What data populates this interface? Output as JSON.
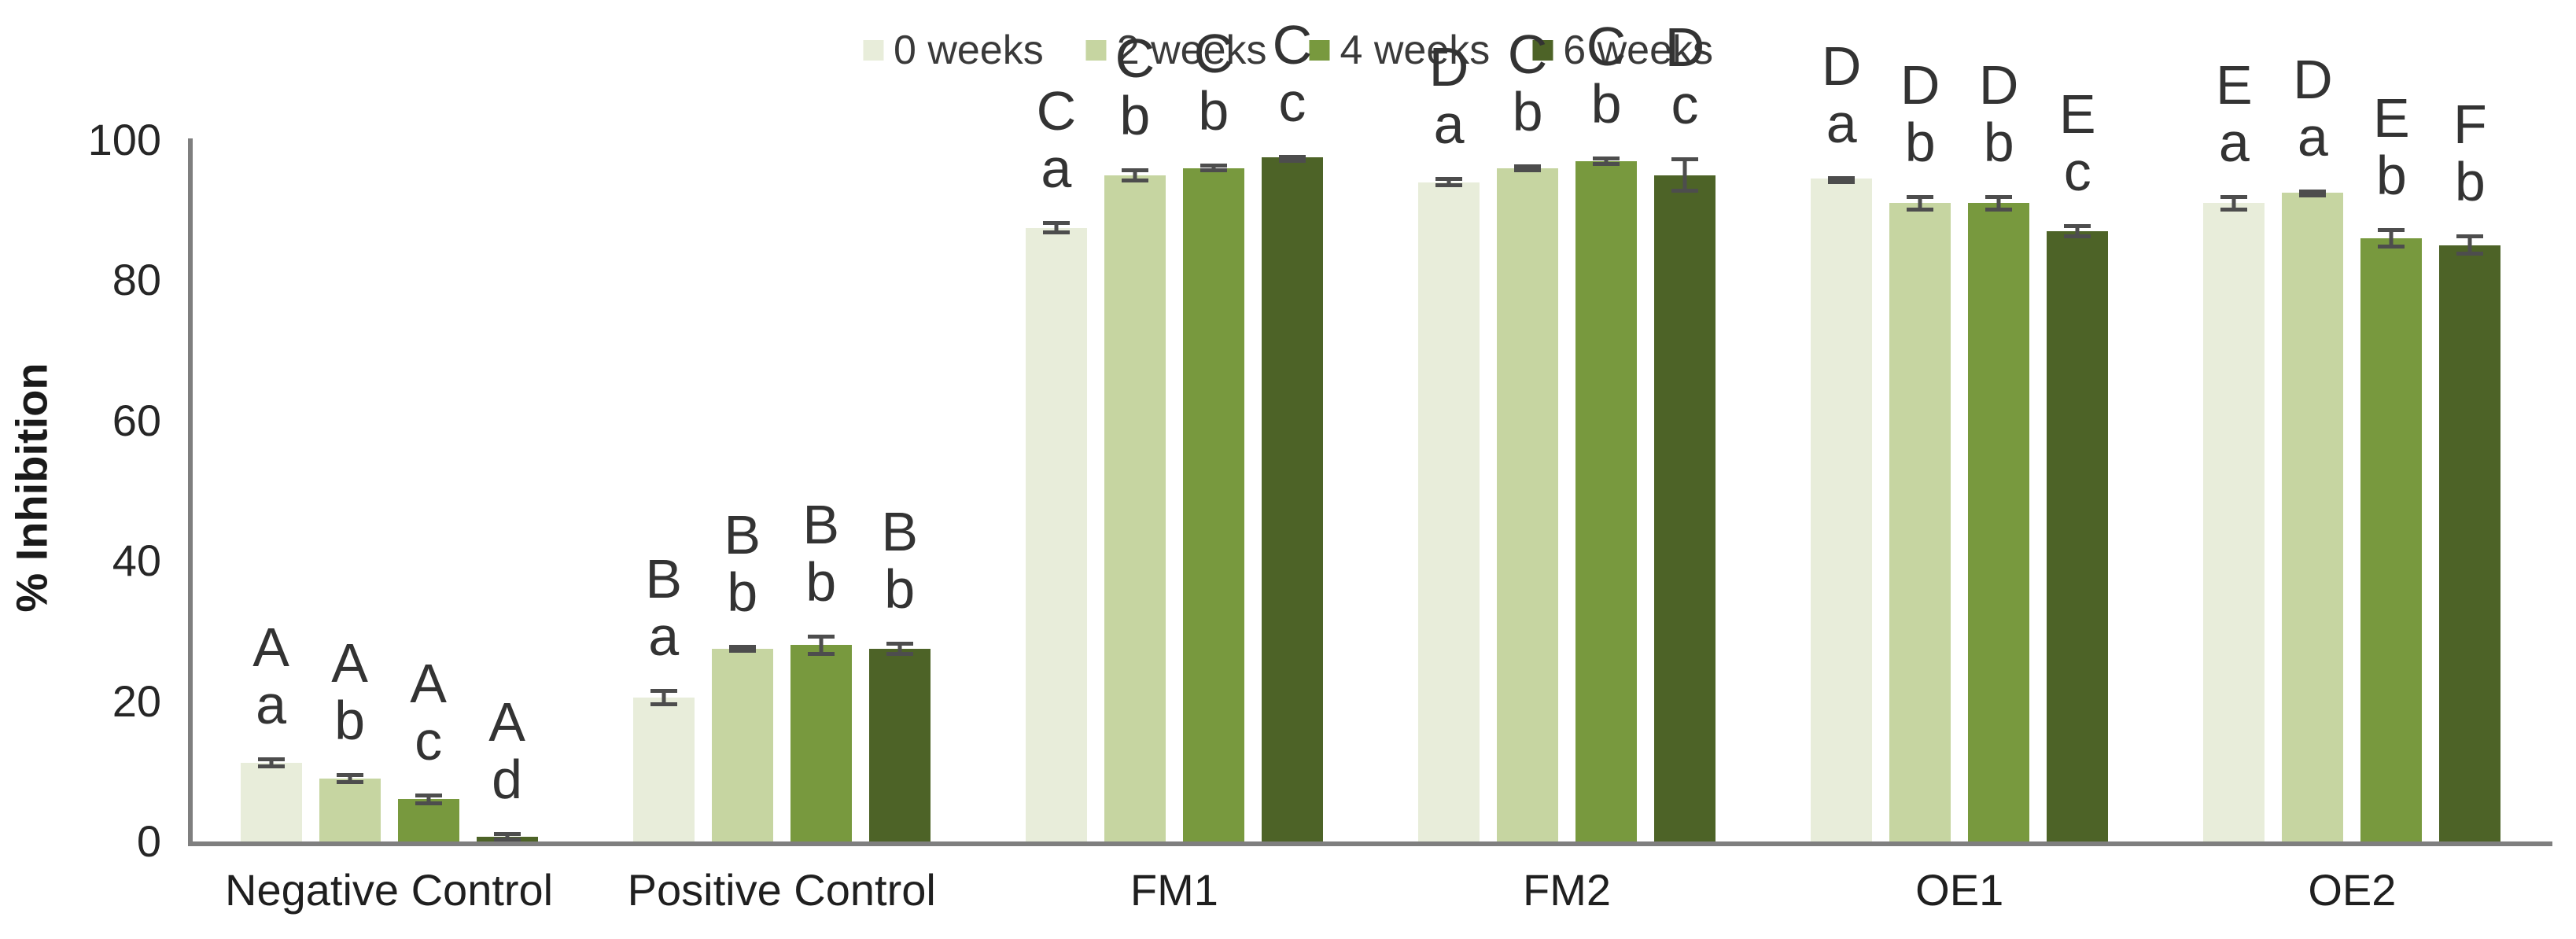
{
  "chart_data": {
    "type": "bar",
    "title": "",
    "ylabel": "% Inhibition",
    "xlabel": "",
    "ylim": [
      0,
      100
    ],
    "yticks": [
      0,
      20,
      40,
      60,
      80,
      100
    ],
    "grid": false,
    "legend_position": "top-center",
    "axis_color": "#7f7f7f",
    "error_bar_color": "#4d4d4d",
    "categories": [
      "Negative Control",
      "Positive Control",
      "FM1",
      "FM2",
      "OE1",
      "OE2"
    ],
    "series": [
      {
        "name": "0 weeks",
        "color": "#e8edda",
        "values": [
          11.2,
          20.5,
          87.5,
          94,
          94.5,
          91
        ],
        "errors": [
          0.8,
          1.2,
          1.0,
          0.7,
          0.4,
          1.2
        ],
        "sig_labels": [
          [
            "A",
            "a"
          ],
          [
            "B",
            "a"
          ],
          [
            "C",
            "a"
          ],
          [
            "D",
            "a"
          ],
          [
            "D",
            "a"
          ],
          [
            "E",
            "a"
          ]
        ]
      },
      {
        "name": "2 weeks",
        "color": "#c6d5a1",
        "values": [
          9,
          27.5,
          95,
          96,
          91,
          92.5
        ],
        "errors": [
          0.8,
          0.5,
          1.0,
          0.5,
          1.2,
          0.4
        ],
        "sig_labels": [
          [
            "A",
            "b"
          ],
          [
            "B",
            "b"
          ],
          [
            "C",
            "b"
          ],
          [
            "C",
            "b"
          ],
          [
            "D",
            "b"
          ],
          [
            "D",
            "a"
          ]
        ]
      },
      {
        "name": "4 weeks",
        "color": "#78993e",
        "values": [
          6,
          28,
          96,
          97,
          91,
          86
        ],
        "errors": [
          0.8,
          1.5,
          0.6,
          0.7,
          1.2,
          1.5
        ],
        "sig_labels": [
          [
            "A",
            "c"
          ],
          [
            "B",
            "b"
          ],
          [
            "C",
            "b"
          ],
          [
            "C",
            "b"
          ],
          [
            "D",
            "b"
          ],
          [
            "E",
            "b"
          ]
        ]
      },
      {
        "name": "6 weeks",
        "color": "#4d6327",
        "values": [
          0.7,
          27.5,
          97.5,
          95,
          87,
          85
        ],
        "errors": [
          0.7,
          1.0,
          0.4,
          2.5,
          1.0,
          1.5
        ],
        "sig_labels": [
          [
            "A",
            "d"
          ],
          [
            "B",
            "b"
          ],
          [
            "C",
            "c"
          ],
          [
            "D",
            "c"
          ],
          [
            "E",
            "c"
          ],
          [
            "F",
            "b"
          ]
        ]
      }
    ]
  }
}
